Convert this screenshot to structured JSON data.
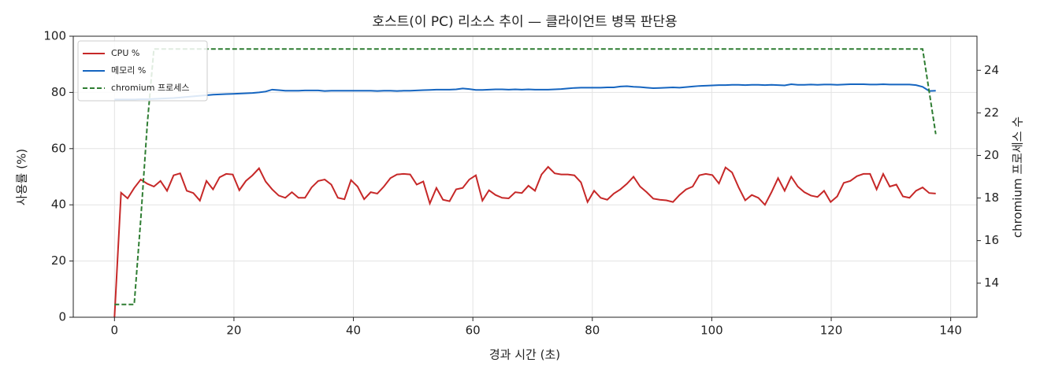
{
  "chart_data": {
    "type": "line",
    "title": "호스트(이 PC) 리소스 추이 — 클라이언트 병목 판단용",
    "x_label": "경과 시간 (초)",
    "y_label": "사용률 (%)",
    "y2_label": "chromium 프로세스 수",
    "x": [
      0,
      1.1,
      2.2,
      3.3,
      4.4,
      5.5,
      6.6,
      7.7,
      8.8,
      9.9,
      11,
      12.1,
      13.2,
      14.3,
      15.4,
      16.5,
      17.6,
      18.7,
      19.8,
      20.9,
      22,
      23.1,
      24.2,
      25.3,
      26.4,
      27.5,
      28.6,
      29.7,
      30.8,
      31.9,
      33,
      34.1,
      35.2,
      36.3,
      37.4,
      38.5,
      39.6,
      40.7,
      41.8,
      42.9,
      44,
      45.1,
      46.2,
      47.3,
      48.4,
      49.5,
      50.6,
      51.7,
      52.8,
      53.9,
      55,
      56.1,
      57.2,
      58.3,
      59.4,
      60.5,
      61.6,
      62.7,
      63.8,
      64.9,
      66,
      67.1,
      68.2,
      69.3,
      70.4,
      71.5,
      72.6,
      73.7,
      74.8,
      75.9,
      77,
      78.1,
      79.2,
      80.3,
      81.4,
      82.5,
      83.6,
      84.7,
      85.8,
      86.9,
      88,
      89.1,
      90.2,
      91.3,
      92.4,
      93.5,
      94.6,
      95.7,
      96.8,
      97.9,
      99,
      100.1,
      101.2,
      102.3,
      103.4,
      104.5,
      105.6,
      106.7,
      107.8,
      108.9,
      110,
      111.1,
      112.2,
      113.3,
      114.4,
      115.5,
      116.6,
      117.7,
      118.8,
      119.9,
      121,
      122.1,
      123.2,
      124.3,
      125.4,
      126.5,
      127.6,
      128.7,
      129.8,
      130.9,
      132,
      133.1,
      134.2,
      135.3,
      136.4,
      137.5
    ],
    "series": [
      {
        "name": "CPU %",
        "color": "#c62828",
        "axis": "y",
        "linestyle": "solid",
        "values": [
          0,
          44.3,
          42.3,
          46,
          49,
          47.5,
          46.5,
          48.5,
          45,
          50.5,
          51.2,
          45,
          44.2,
          41.5,
          48.5,
          45.5,
          49.8,
          51,
          50.8,
          45.2,
          48.5,
          50.5,
          53,
          48.3,
          45.5,
          43.3,
          42.5,
          44.5,
          42.5,
          42.5,
          46.2,
          48.5,
          49,
          47.2,
          42.5,
          42,
          48.8,
          46.5,
          42,
          44.5,
          44,
          46.5,
          49.5,
          50.8,
          51,
          50.8,
          47.2,
          48.3,
          40.5,
          46,
          41.8,
          41.3,
          45.5,
          46,
          49,
          50.5,
          41.5,
          45.2,
          43.5,
          42.5,
          42.3,
          44.5,
          44.2,
          46.8,
          45,
          50.8,
          53.5,
          51.2,
          50.8,
          50.8,
          50.5,
          48,
          41,
          45,
          42.5,
          41.8,
          44,
          45.5,
          47.5,
          50,
          46.5,
          44.5,
          42.2,
          41.8,
          41.6,
          41,
          43.5,
          45.5,
          46.5,
          50.5,
          51,
          50.6,
          47.6,
          53.3,
          51.5,
          46.2,
          41.6,
          43.5,
          42.5,
          40,
          44.5,
          49.5,
          45,
          50,
          46.5,
          44.5,
          43.3,
          42.8,
          45,
          41,
          43,
          47.8,
          48.5,
          50.2,
          51,
          51,
          45.5,
          51,
          46.5,
          47.2,
          43,
          42.5,
          45,
          46.2,
          44.2,
          44
        ]
      },
      {
        "name": "메모리 %",
        "color": "#1565c0",
        "axis": "y",
        "linestyle": "solid",
        "values": [
          77.5,
          77.5,
          77.5,
          77.5,
          77.6,
          77.6,
          77.7,
          77.8,
          77.9,
          78.0,
          78.2,
          78.4,
          78.6,
          78.8,
          79.0,
          79.2,
          79.3,
          79.4,
          79.5,
          79.6,
          79.7,
          79.8,
          80.0,
          80.3,
          81.0,
          80.8,
          80.6,
          80.6,
          80.6,
          80.7,
          80.7,
          80.7,
          80.5,
          80.6,
          80.6,
          80.6,
          80.6,
          80.6,
          80.6,
          80.6,
          80.5,
          80.6,
          80.6,
          80.5,
          80.6,
          80.6,
          80.7,
          80.8,
          80.9,
          81.0,
          81.0,
          81.0,
          81.1,
          81.4,
          81.2,
          80.9,
          80.9,
          81.0,
          81.1,
          81.1,
          81.0,
          81.1,
          81.0,
          81.1,
          81.0,
          81.0,
          81.0,
          81.1,
          81.2,
          81.4,
          81.6,
          81.7,
          81.7,
          81.7,
          81.7,
          81.8,
          81.8,
          82.1,
          82.2,
          82.0,
          81.9,
          81.7,
          81.5,
          81.6,
          81.7,
          81.8,
          81.7,
          81.9,
          82.1,
          82.3,
          82.4,
          82.5,
          82.6,
          82.6,
          82.7,
          82.7,
          82.6,
          82.7,
          82.7,
          82.6,
          82.7,
          82.6,
          82.5,
          82.9,
          82.7,
          82.7,
          82.8,
          82.7,
          82.8,
          82.8,
          82.7,
          82.8,
          82.9,
          82.9,
          82.9,
          82.8,
          82.8,
          82.9,
          82.8,
          82.8,
          82.8,
          82.8,
          82.6,
          82.0,
          80.5,
          80.6
        ]
      },
      {
        "name": "chromium 프로세스",
        "color": "#2e7d32",
        "axis": "y2",
        "linestyle": "dashed",
        "values": [
          13,
          13,
          13,
          13,
          17,
          21.5,
          25,
          25,
          25,
          25,
          25,
          25,
          25,
          25,
          25,
          25,
          25,
          25,
          25,
          25,
          25,
          25,
          25,
          25,
          25,
          25,
          25,
          25,
          25,
          25,
          25,
          25,
          25,
          25,
          25,
          25,
          25,
          25,
          25,
          25,
          25,
          25,
          25,
          25,
          25,
          25,
          25,
          25,
          25,
          25,
          25,
          25,
          25,
          25,
          25,
          25,
          25,
          25,
          25,
          25,
          25,
          25,
          25,
          25,
          25,
          25,
          25,
          25,
          25,
          25,
          25,
          25,
          25,
          25,
          25,
          25,
          25,
          25,
          25,
          25,
          25,
          25,
          25,
          25,
          25,
          25,
          25,
          25,
          25,
          25,
          25,
          25,
          25,
          25,
          25,
          25,
          25,
          25,
          25,
          25,
          25,
          25,
          25,
          25,
          25,
          25,
          25,
          25,
          25,
          25,
          25,
          25,
          25,
          25,
          25,
          25,
          25,
          25,
          25,
          25,
          25,
          25,
          25,
          25,
          23,
          21
        ]
      }
    ],
    "xlim": [
      -6.9,
      144.4
    ],
    "ylim": [
      0,
      100
    ],
    "y2lim": [
      12.4,
      25.6
    ],
    "xticks": [
      0,
      20,
      40,
      60,
      80,
      100,
      120,
      140
    ],
    "yticks": [
      0,
      20,
      40,
      60,
      80,
      100
    ],
    "y2ticks": [
      14,
      16,
      18,
      20,
      22,
      24
    ],
    "grid": true,
    "legend": "upper left"
  }
}
